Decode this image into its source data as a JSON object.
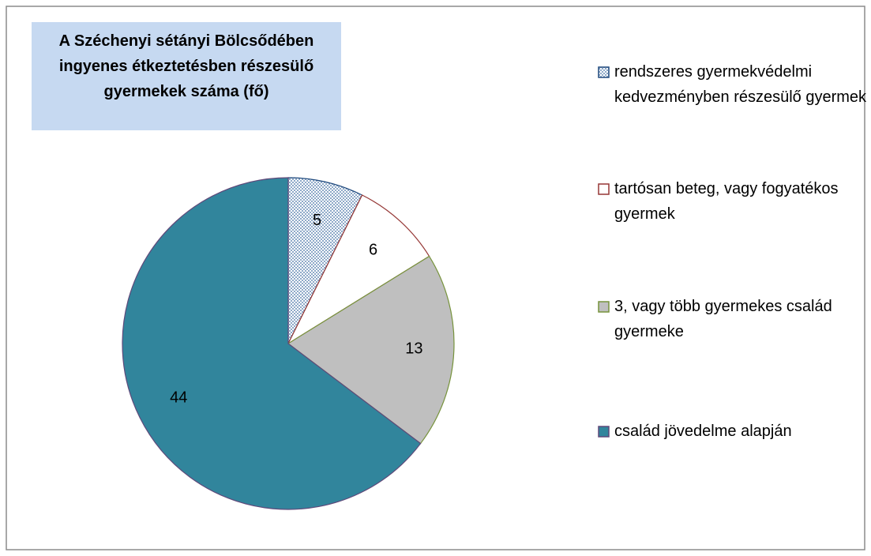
{
  "chart_data": {
    "type": "pie",
    "title": "A Széchenyi sétányi Bölcsődében ingyenes étkeztetésben részesülő gyermekek száma (fő)",
    "categories": [
      "rendszeres gyermekvédelmi kedvezményben részesülő gyermek",
      "tartósan beteg, vagy fogyatékos gyermek",
      "3, vagy több gyermekes család gyermeke",
      "család jövedelme alapján"
    ],
    "values": [
      5,
      6,
      13,
      44
    ],
    "colors": [
      "#8ea9c8",
      "#ffffff",
      "#bfbfbf",
      "#31859c"
    ],
    "edge_colors": [
      "#1f497d",
      "#953735",
      "#77933c",
      "#5f497a"
    ],
    "hatch": [
      "dots",
      null,
      null,
      null
    ],
    "legend": "right"
  }
}
